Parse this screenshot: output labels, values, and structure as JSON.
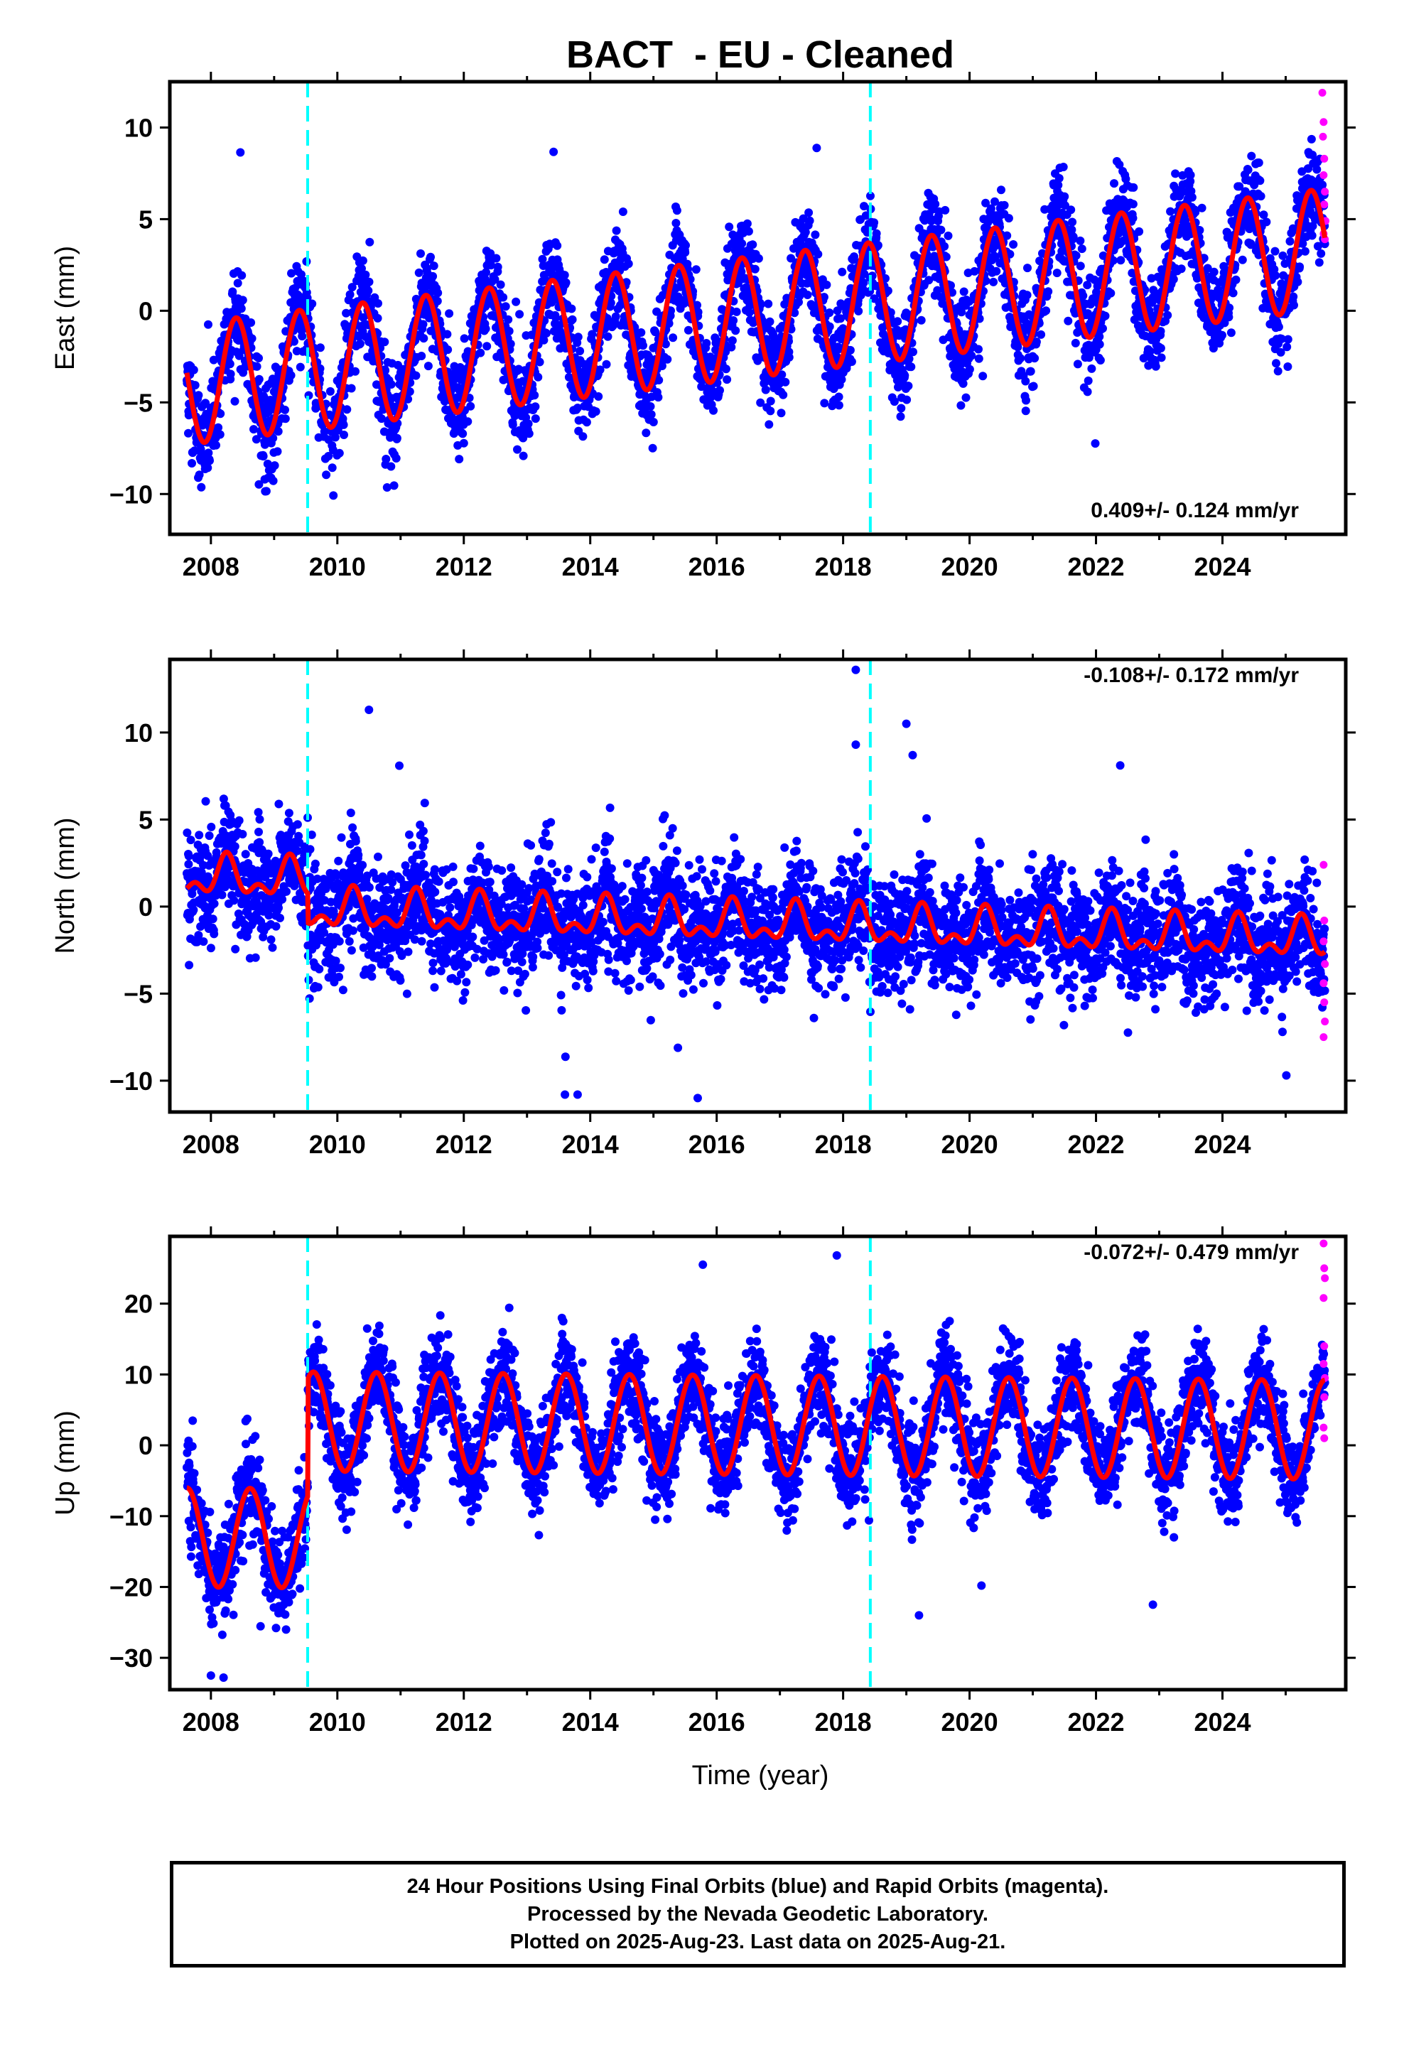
{
  "title": "BACT  - EU - Cleaned",
  "xlabel": "Time (year)",
  "footer": {
    "line1": "24 Hour Positions Using Final Orbits (blue) and Rapid Orbits (magenta).",
    "line2": "Processed by the Nevada Geodetic Laboratory.",
    "line3": "Plotted on 2025-Aug-23. Last data on 2025-Aug-21."
  },
  "colors": {
    "final": "#0000ff",
    "rapid": "#ff00ff",
    "model": "#ff0000",
    "offset_line": "#00ffff"
  },
  "chart_data": [
    {
      "type": "scatter",
      "component": "east",
      "ylabel": "East (mm)",
      "rate_label": "0.409+/- 0.124 mm/yr",
      "xlim": [
        2007.35,
        2025.95
      ],
      "ylim": [
        -12.2,
        12.5
      ],
      "xticks": [
        2008,
        2010,
        2012,
        2014,
        2016,
        2018,
        2020,
        2022,
        2024
      ],
      "yticks": [
        -10,
        -5,
        0,
        5,
        10
      ],
      "ytick_labels": [
        "−10",
        "−5",
        "0",
        "5",
        "10"
      ],
      "offsets": [
        2009.53,
        2018.43
      ],
      "model": {
        "start": 2007.62,
        "end": 2025.62,
        "trend_mm_per_yr": 0.409,
        "intercept": -4.0,
        "amp": 3.3,
        "phase_peak": 0.4,
        "jump_at": 2009.53,
        "jump": 0.0
      },
      "noise_sd": 1.3,
      "rapid_points": [
        [
          2025.58,
          11.9
        ],
        [
          2025.6,
          10.3
        ],
        [
          2025.59,
          9.5
        ],
        [
          2025.61,
          8.3
        ],
        [
          2025.6,
          7.4
        ],
        [
          2025.62,
          6.5
        ],
        [
          2025.61,
          5.8
        ],
        [
          2025.63,
          4.9
        ],
        [
          2025.6,
          4.2
        ],
        [
          2025.62,
          3.9
        ]
      ]
    },
    {
      "type": "scatter",
      "component": "north",
      "ylabel": "North (mm)",
      "rate_label": "-0.108+/- 0.172 mm/yr",
      "xlim": [
        2007.35,
        2025.95
      ],
      "ylim": [
        -11.8,
        14.2
      ],
      "xticks": [
        2008,
        2010,
        2012,
        2014,
        2016,
        2018,
        2020,
        2022,
        2024
      ],
      "yticks": [
        -10,
        -5,
        0,
        5,
        10
      ],
      "ytick_labels": [
        "−10",
        "−5",
        "0",
        "5",
        "10"
      ],
      "offsets": [
        2009.53,
        2018.43
      ],
      "model": {
        "start": 2007.62,
        "end": 2025.62,
        "trend_mm_per_yr": -0.108,
        "intercept": 1.7,
        "amp": 0.9,
        "phase_peak": 0.25,
        "semiannual": true,
        "jump_at": 2009.53,
        "jump": -1.7
      },
      "noise_sd": 1.6,
      "outliers": [
        [
          2018.2,
          13.6
        ],
        [
          2019.0,
          10.5
        ],
        [
          2010.5,
          11.3
        ],
        [
          2013.6,
          -10.8
        ],
        [
          2013.8,
          -10.8
        ],
        [
          2015.7,
          -11.0
        ],
        [
          2018.2,
          9.3
        ],
        [
          2019.1,
          8.7
        ]
      ],
      "rapid_points": [
        [
          2025.6,
          2.4
        ],
        [
          2025.61,
          -0.8
        ],
        [
          2025.6,
          -2.0
        ],
        [
          2025.62,
          -3.3
        ],
        [
          2025.6,
          -4.4
        ],
        [
          2025.61,
          -5.5
        ],
        [
          2025.62,
          -6.6
        ],
        [
          2025.6,
          -7.5
        ]
      ]
    },
    {
      "type": "scatter",
      "component": "up",
      "ylabel": "Up (mm)",
      "rate_label": "-0.072+/- 0.479 mm/yr",
      "xlim": [
        2007.35,
        2025.95
      ],
      "ylim": [
        -34.5,
        29.5
      ],
      "xticks": [
        2008,
        2010,
        2012,
        2014,
        2016,
        2018,
        2020,
        2022,
        2024
      ],
      "yticks": [
        -30,
        -20,
        -10,
        0,
        10,
        20
      ],
      "ytick_labels": [
        "−30",
        "−20",
        "−10",
        "0",
        "10",
        "20"
      ],
      "offsets": [
        2009.53,
        2018.43
      ],
      "model": {
        "start": 2007.62,
        "end": 2025.62,
        "trend_mm_per_yr": -0.072,
        "intercept": -13.0,
        "amp": 7.0,
        "phase_peak": 0.62,
        "jump_at": 2009.53,
        "jump": 16.5
      },
      "noise_sd": 3.3,
      "outliers": [
        [
          2017.9,
          26.8
        ],
        [
          2019.2,
          -24.0
        ],
        [
          2022.9,
          -22.5
        ],
        [
          2008.0,
          -32.5
        ],
        [
          2008.2,
          -32.8
        ]
      ],
      "rapid_points": [
        [
          2025.6,
          28.5
        ],
        [
          2025.61,
          25.0
        ],
        [
          2025.62,
          23.6
        ],
        [
          2025.6,
          20.8
        ],
        [
          2025.61,
          14.0
        ],
        [
          2025.6,
          11.5
        ],
        [
          2025.62,
          9.5
        ],
        [
          2025.61,
          6.8
        ],
        [
          2025.6,
          2.5
        ],
        [
          2025.61,
          1.0
        ]
      ]
    }
  ]
}
